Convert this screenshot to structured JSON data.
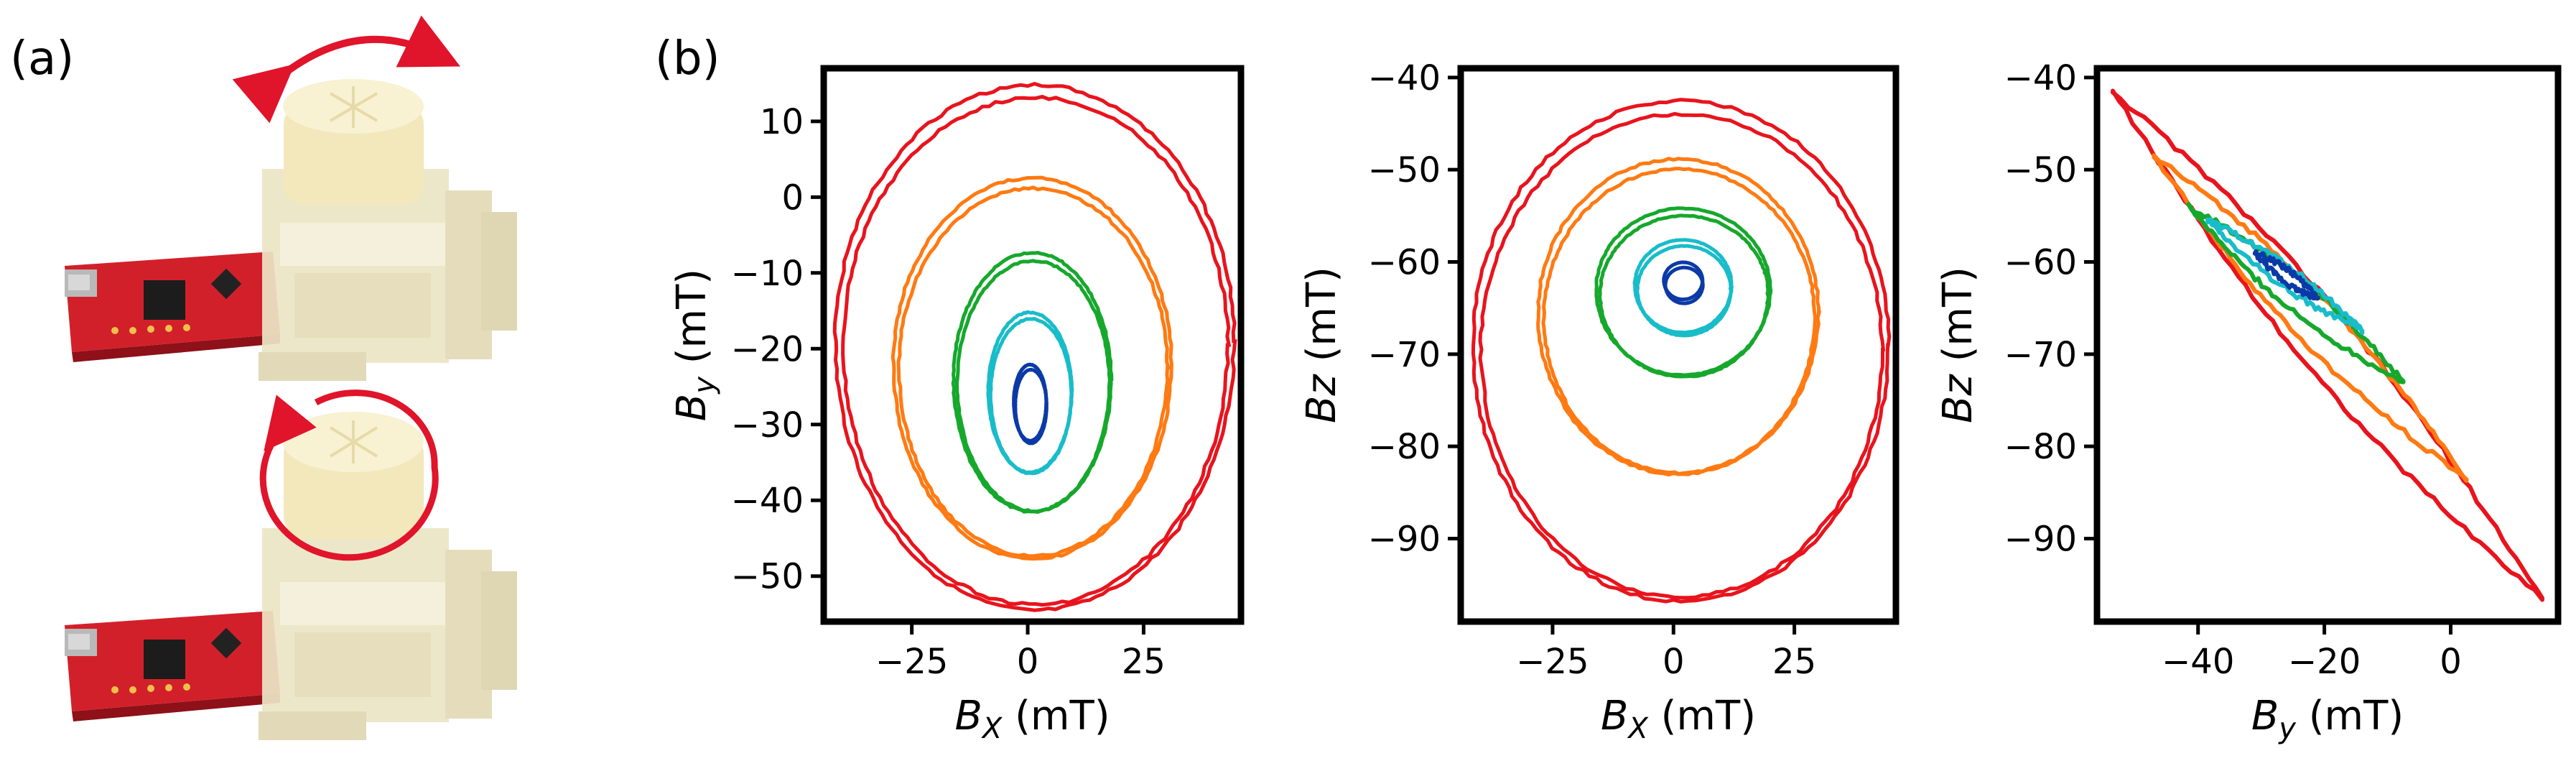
{
  "panel_labels": {
    "a": "(a)",
    "b": "(b)"
  },
  "colors": {
    "red": "#e8141d",
    "orange": "#ff7a12",
    "green": "#16a82c",
    "cyan": "#19bcc9",
    "blue": "#0b3aa6",
    "pcb": "#d2202a",
    "housing": "#ece5c6",
    "knob": "#f2e8bc",
    "arrow": "#e0142a"
  },
  "photo_icons": [
    "rotate-arrow-icon",
    "rotate-circle-icon"
  ],
  "chart_data": [
    {
      "type": "line",
      "xlabel": {
        "var": "B",
        "sub": "X",
        "unit": " (mT)"
      },
      "ylabel": {
        "var": "B",
        "sub": "y",
        "unit": " (mT)"
      },
      "xlim": [
        -44,
        46
      ],
      "ylim": [
        -56,
        17
      ],
      "xticks": [
        -25,
        0,
        25
      ],
      "xtick_labels": [
        "−25",
        "0",
        "25"
      ],
      "yticks": [
        10,
        0,
        -10,
        -20,
        -30,
        -40,
        -50
      ],
      "ytick_labels": [
        "10",
        "0",
        "−10",
        "−20",
        "−30",
        "−40",
        "−50"
      ],
      "grid": false,
      "series": [
        {
          "color": "red",
          "cx": 1.5,
          "cy": -19,
          "rx": 43,
          "ry": 34.5,
          "loops": 2
        },
        {
          "color": "orange",
          "cx": 1.0,
          "cy": -22,
          "rx": 30,
          "ry": 25,
          "loops": 2
        },
        {
          "color": "green",
          "cx": 1.0,
          "cy": -24,
          "rx": 17,
          "ry": 17,
          "loops": 2
        },
        {
          "color": "cyan",
          "cx": 0.5,
          "cy": -25.5,
          "rx": 9,
          "ry": 10.5,
          "loops": 2
        },
        {
          "color": "blue",
          "cx": 0.5,
          "cy": -27,
          "rx": 3.5,
          "ry": 5,
          "loops": 2
        }
      ]
    },
    {
      "type": "line",
      "xlabel": {
        "var": "B",
        "sub": "X",
        "unit": " (mT)"
      },
      "ylabel": {
        "var": "Bz",
        "sub": "",
        "unit": " (mT)"
      },
      "xlim": [
        -44,
        46
      ],
      "ylim": [
        -99,
        -39
      ],
      "xticks": [
        -25,
        0,
        25
      ],
      "xtick_labels": [
        "−25",
        "0",
        "25"
      ],
      "yticks": [
        -40,
        -50,
        -60,
        -70,
        -80,
        -90
      ],
      "ytick_labels": [
        "−40",
        "−50",
        "−60",
        "−70",
        "−80",
        "−90"
      ],
      "grid": false,
      "series": [
        {
          "color": "red",
          "cx": 1.5,
          "cy": -69,
          "rx": 43,
          "ry": 27,
          "loops": 2
        },
        {
          "color": "orange",
          "cx": 1.0,
          "cy": -65.5,
          "rx": 29,
          "ry": 17,
          "loops": 2
        },
        {
          "color": "green",
          "cx": 2.0,
          "cy": -63,
          "rx": 18,
          "ry": 9,
          "loops": 2
        },
        {
          "color": "cyan",
          "cx": 2.0,
          "cy": -62.5,
          "rx": 10,
          "ry": 5,
          "loops": 2
        },
        {
          "color": "blue",
          "cx": 2.0,
          "cy": -62,
          "rx": 4,
          "ry": 2,
          "loops": 2
        }
      ]
    },
    {
      "type": "line",
      "xlabel": {
        "var": "B",
        "sub": "y",
        "unit": " (mT)"
      },
      "ylabel": {
        "var": "Bz",
        "sub": "",
        "unit": " (mT)"
      },
      "xlim": [
        -56,
        17
      ],
      "ylim": [
        -99,
        -39
      ],
      "xticks": [
        -40,
        -20,
        0
      ],
      "xtick_labels": [
        "−40",
        "−20",
        "0"
      ],
      "yticks": [
        -40,
        -50,
        -60,
        -70,
        -80,
        -90
      ],
      "ytick_labels": [
        "−40",
        "−50",
        "−60",
        "−70",
        "−80",
        "−90"
      ],
      "grid": false,
      "series": [
        {
          "color": "red",
          "x0": -53.5,
          "y0": -41.5,
          "x1": 14.5,
          "y1": -96.5,
          "w": 3.2
        },
        {
          "color": "orange",
          "x0": -47,
          "y0": -48.5,
          "x1": 2.5,
          "y1": -83.5,
          "w": 2.4
        },
        {
          "color": "green",
          "x0": -41.5,
          "y0": -54,
          "x1": -7.5,
          "y1": -73,
          "w": 1.6
        },
        {
          "color": "cyan",
          "x0": -38.5,
          "y0": -55.5,
          "x1": -14,
          "y1": -67.5,
          "w": 1.0
        },
        {
          "color": "blue",
          "x0": -31,
          "y0": -59,
          "x1": -21,
          "y1": -64,
          "w": 0.6
        }
      ]
    }
  ]
}
